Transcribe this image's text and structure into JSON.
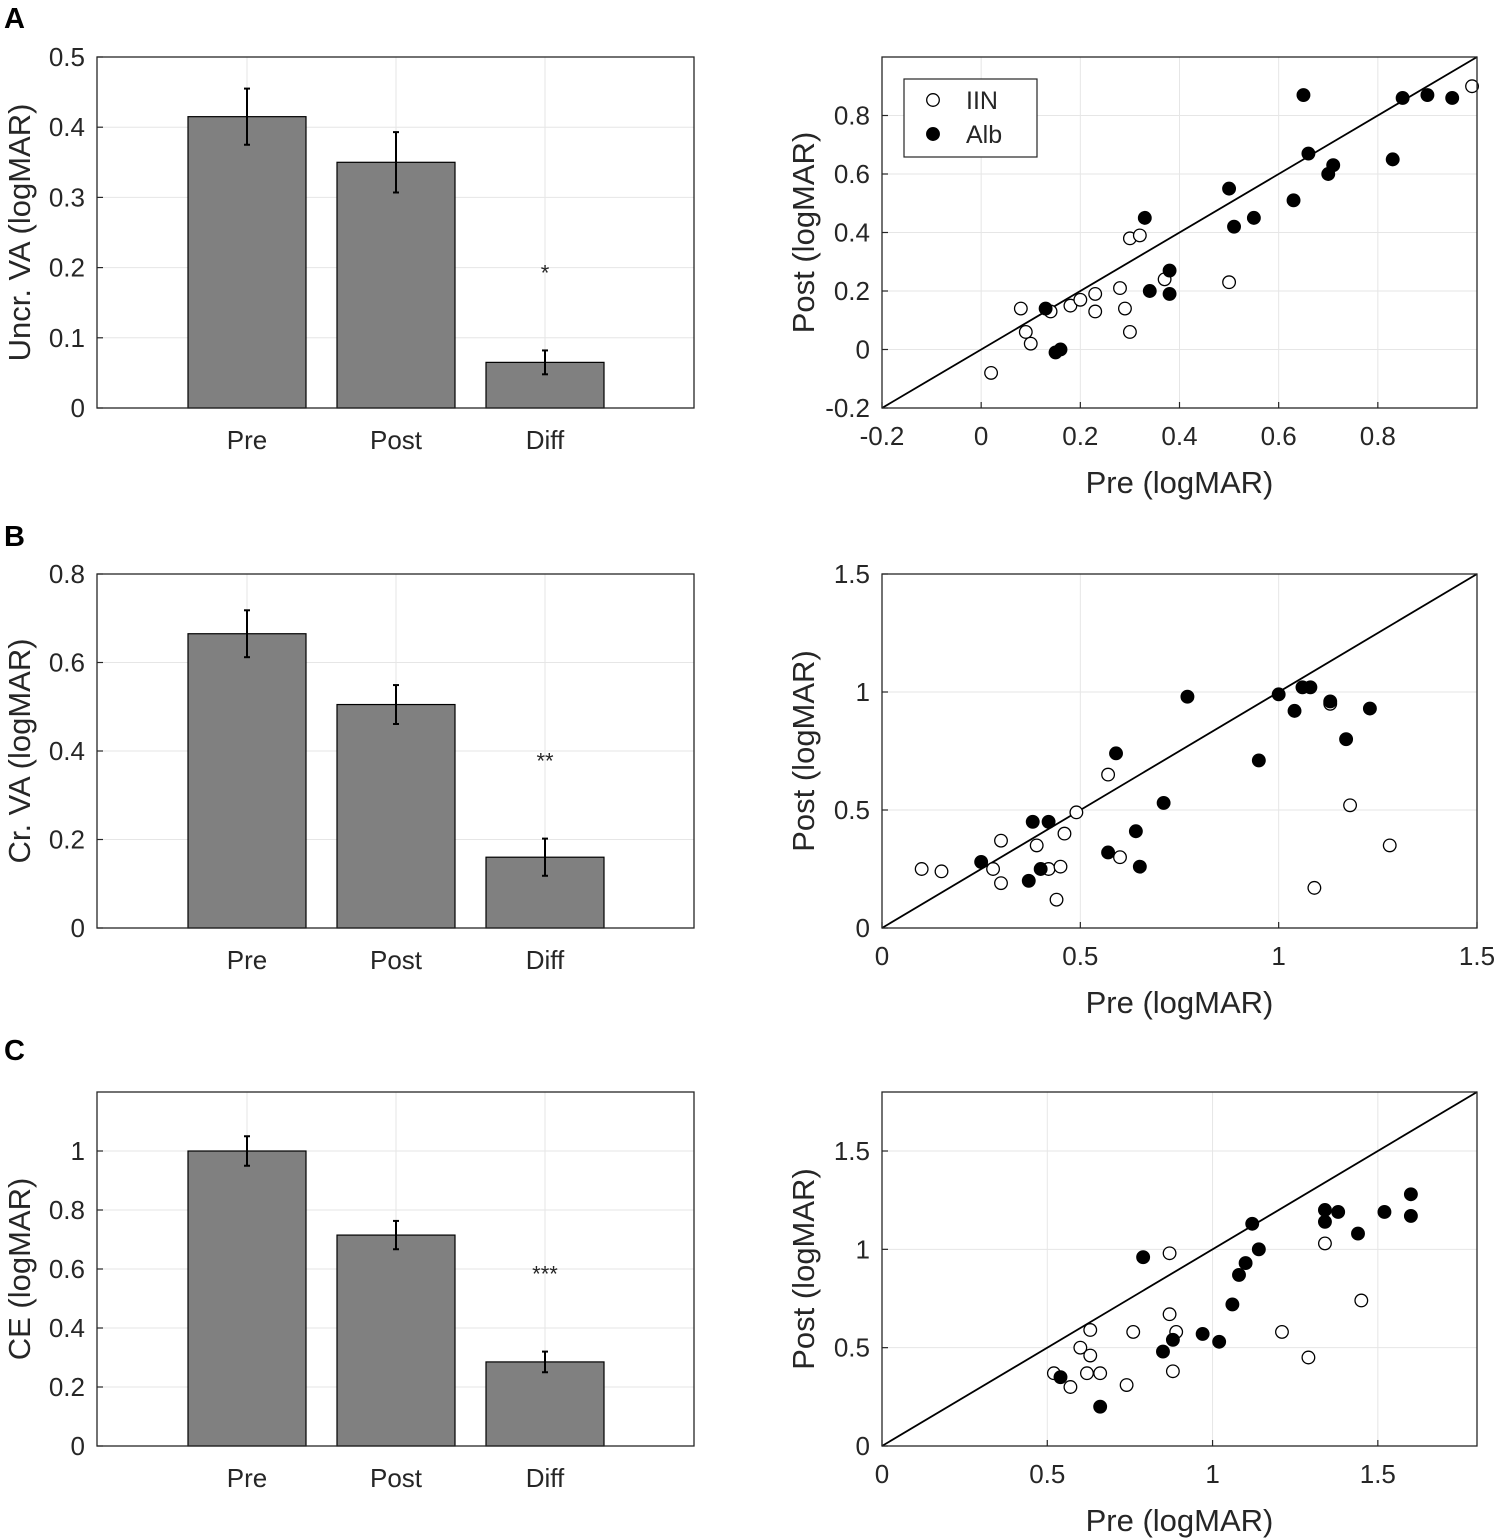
{
  "colors": {
    "bar": "#808080",
    "grid": "#e6e6e6",
    "axis": "#262626",
    "marker": "#000000"
  },
  "legend": {
    "open_label": "IIN",
    "filled_label": "Alb"
  },
  "chart_data": [
    {
      "panel": "A",
      "type": "bar",
      "categories": [
        "Pre",
        "Post",
        "Diff"
      ],
      "values": [
        0.415,
        0.35,
        0.065
      ],
      "errors": [
        0.04,
        0.043,
        0.017
      ],
      "significance": [
        "",
        "",
        "*"
      ],
      "ylabel": "Uncr. VA (logMAR)",
      "ylim": [
        0,
        0.5
      ],
      "yticks": [
        0,
        0.1,
        0.2,
        0.3,
        0.4,
        0.5
      ],
      "grid": true
    },
    {
      "panel": "A",
      "type": "scatter",
      "xlabel": "Pre (logMAR)",
      "ylabel": "Post (logMAR)",
      "xlim": [
        -0.2,
        1.0
      ],
      "ylim": [
        -0.2,
        1.0
      ],
      "xticks": [
        -0.2,
        0,
        0.2,
        0.4,
        0.6,
        0.8
      ],
      "yticks": [
        -0.2,
        0,
        0.2,
        0.4,
        0.6,
        0.8
      ],
      "identity_line": true,
      "legend": "top-left",
      "grid": true,
      "series": [
        {
          "name": "IIN",
          "marker": "open",
          "points": [
            [
              0.02,
              -0.08
            ],
            [
              0.08,
              0.14
            ],
            [
              0.09,
              0.06
            ],
            [
              0.1,
              0.02
            ],
            [
              0.14,
              0.13
            ],
            [
              0.18,
              0.15
            ],
            [
              0.2,
              0.17
            ],
            [
              0.23,
              0.13
            ],
            [
              0.23,
              0.19
            ],
            [
              0.28,
              0.21
            ],
            [
              0.29,
              0.14
            ],
            [
              0.3,
              0.38
            ],
            [
              0.3,
              0.06
            ],
            [
              0.32,
              0.39
            ],
            [
              0.37,
              0.24
            ],
            [
              0.5,
              0.23
            ],
            [
              0.99,
              0.9
            ]
          ]
        },
        {
          "name": "Alb",
          "marker": "filled",
          "points": [
            [
              0.13,
              0.14
            ],
            [
              0.15,
              -0.01
            ],
            [
              0.16,
              0.0
            ],
            [
              0.33,
              0.45
            ],
            [
              0.34,
              0.2
            ],
            [
              0.38,
              0.19
            ],
            [
              0.38,
              0.27
            ],
            [
              0.5,
              0.55
            ],
            [
              0.51,
              0.42
            ],
            [
              0.55,
              0.45
            ],
            [
              0.63,
              0.51
            ],
            [
              0.65,
              0.87
            ],
            [
              0.66,
              0.67
            ],
            [
              0.7,
              0.6
            ],
            [
              0.71,
              0.63
            ],
            [
              0.83,
              0.65
            ],
            [
              0.85,
              0.86
            ],
            [
              0.9,
              0.87
            ],
            [
              0.95,
              0.86
            ]
          ]
        }
      ]
    },
    {
      "panel": "B",
      "type": "bar",
      "categories": [
        "Pre",
        "Post",
        "Diff"
      ],
      "values": [
        0.665,
        0.505,
        0.16
      ],
      "errors": [
        0.053,
        0.044,
        0.042
      ],
      "significance": [
        "",
        "",
        "**"
      ],
      "ylabel": "Cr. VA (logMAR)",
      "ylim": [
        0,
        0.8
      ],
      "yticks": [
        0,
        0.2,
        0.4,
        0.6,
        0.8
      ],
      "grid": true
    },
    {
      "panel": "B",
      "type": "scatter",
      "xlabel": "Pre (logMAR)",
      "ylabel": "Post (logMAR)",
      "xlim": [
        0,
        1.5
      ],
      "ylim": [
        0,
        1.5
      ],
      "xticks": [
        0,
        0.5,
        1,
        1.5
      ],
      "yticks": [
        0,
        0.5,
        1,
        1.5
      ],
      "identity_line": true,
      "grid": true,
      "series": [
        {
          "name": "IIN",
          "marker": "open",
          "points": [
            [
              0.1,
              0.25
            ],
            [
              0.15,
              0.24
            ],
            [
              0.28,
              0.25
            ],
            [
              0.3,
              0.37
            ],
            [
              0.3,
              0.19
            ],
            [
              0.39,
              0.35
            ],
            [
              0.42,
              0.25
            ],
            [
              0.44,
              0.12
            ],
            [
              0.45,
              0.26
            ],
            [
              0.46,
              0.4
            ],
            [
              0.49,
              0.49
            ],
            [
              0.57,
              0.65
            ],
            [
              0.6,
              0.3
            ],
            [
              1.09,
              0.17
            ],
            [
              1.13,
              0.95
            ],
            [
              1.18,
              0.52
            ],
            [
              1.28,
              0.35
            ]
          ]
        },
        {
          "name": "Alb",
          "marker": "filled",
          "points": [
            [
              0.25,
              0.28
            ],
            [
              0.37,
              0.2
            ],
            [
              0.38,
              0.45
            ],
            [
              0.4,
              0.25
            ],
            [
              0.42,
              0.45
            ],
            [
              0.57,
              0.32
            ],
            [
              0.59,
              0.74
            ],
            [
              0.64,
              0.41
            ],
            [
              0.65,
              0.26
            ],
            [
              0.71,
              0.53
            ],
            [
              0.77,
              0.98
            ],
            [
              0.95,
              0.71
            ],
            [
              1.0,
              0.99
            ],
            [
              1.04,
              0.92
            ],
            [
              1.06,
              1.02
            ],
            [
              1.08,
              1.02
            ],
            [
              1.13,
              0.96
            ],
            [
              1.17,
              0.8
            ],
            [
              1.23,
              0.93
            ]
          ]
        }
      ]
    },
    {
      "panel": "C",
      "type": "bar",
      "categories": [
        "Pre",
        "Post",
        "Diff"
      ],
      "values": [
        1.0,
        0.715,
        0.285
      ],
      "errors": [
        0.05,
        0.048,
        0.035
      ],
      "significance": [
        "",
        "",
        "***"
      ],
      "ylabel": "CE (logMAR)",
      "ylim": [
        0,
        1.2
      ],
      "yticks": [
        0,
        0.2,
        0.4,
        0.6,
        0.8,
        1
      ],
      "grid": true
    },
    {
      "panel": "C",
      "type": "scatter",
      "xlabel": "Pre (logMAR)",
      "ylabel": "Post (logMAR)",
      "xlim": [
        0,
        1.8
      ],
      "ylim": [
        0,
        1.8
      ],
      "xticks": [
        0,
        0.5,
        1,
        1.5
      ],
      "yticks": [
        0,
        0.5,
        1,
        1.5
      ],
      "identity_line": true,
      "grid": true,
      "series": [
        {
          "name": "IIN",
          "marker": "open",
          "points": [
            [
              0.52,
              0.37
            ],
            [
              0.57,
              0.3
            ],
            [
              0.6,
              0.5
            ],
            [
              0.62,
              0.37
            ],
            [
              0.63,
              0.59
            ],
            [
              0.63,
              0.46
            ],
            [
              0.66,
              0.37
            ],
            [
              0.74,
              0.31
            ],
            [
              0.76,
              0.58
            ],
            [
              0.87,
              0.98
            ],
            [
              0.87,
              0.67
            ],
            [
              0.88,
              0.38
            ],
            [
              0.89,
              0.58
            ],
            [
              1.21,
              0.58
            ],
            [
              1.29,
              0.45
            ],
            [
              1.34,
              1.03
            ],
            [
              1.45,
              0.74
            ]
          ]
        },
        {
          "name": "Alb",
          "marker": "filled",
          "points": [
            [
              0.54,
              0.35
            ],
            [
              0.66,
              0.2
            ],
            [
              0.79,
              0.96
            ],
            [
              0.85,
              0.48
            ],
            [
              0.88,
              0.54
            ],
            [
              0.97,
              0.57
            ],
            [
              1.02,
              0.53
            ],
            [
              1.06,
              0.72
            ],
            [
              1.08,
              0.87
            ],
            [
              1.1,
              0.93
            ],
            [
              1.12,
              1.13
            ],
            [
              1.14,
              1.0
            ],
            [
              1.34,
              1.2
            ],
            [
              1.34,
              1.14
            ],
            [
              1.38,
              1.19
            ],
            [
              1.44,
              1.08
            ],
            [
              1.52,
              1.19
            ],
            [
              1.6,
              1.28
            ],
            [
              1.6,
              1.17
            ]
          ]
        }
      ]
    }
  ]
}
